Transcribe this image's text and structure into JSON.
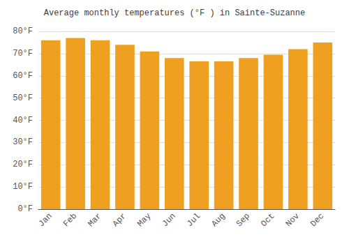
{
  "chart_data": {
    "type": "bar",
    "title": "Average monthly temperatures (°F ) in Sainte-Suzanne",
    "categories": [
      "Jan",
      "Feb",
      "Mar",
      "Apr",
      "May",
      "Jun",
      "Jul",
      "Aug",
      "Sep",
      "Oct",
      "Nov",
      "Dec"
    ],
    "values": [
      76,
      77,
      76,
      74,
      71,
      68,
      66.5,
      66.5,
      68,
      69.5,
      72,
      75
    ],
    "color": "#F0A020",
    "ylim": [
      0,
      80
    ],
    "yticks": [
      {
        "value": 0,
        "label": "0°F"
      },
      {
        "value": 10,
        "label": "10°F"
      },
      {
        "value": 20,
        "label": "20°F"
      },
      {
        "value": 30,
        "label": "30°F"
      },
      {
        "value": 40,
        "label": "40°F"
      },
      {
        "value": 50,
        "label": "50°F"
      },
      {
        "value": 60,
        "label": "60°F"
      },
      {
        "value": 70,
        "label": "70°F"
      },
      {
        "value": 80,
        "label": "80°F"
      }
    ],
    "grid": true
  }
}
